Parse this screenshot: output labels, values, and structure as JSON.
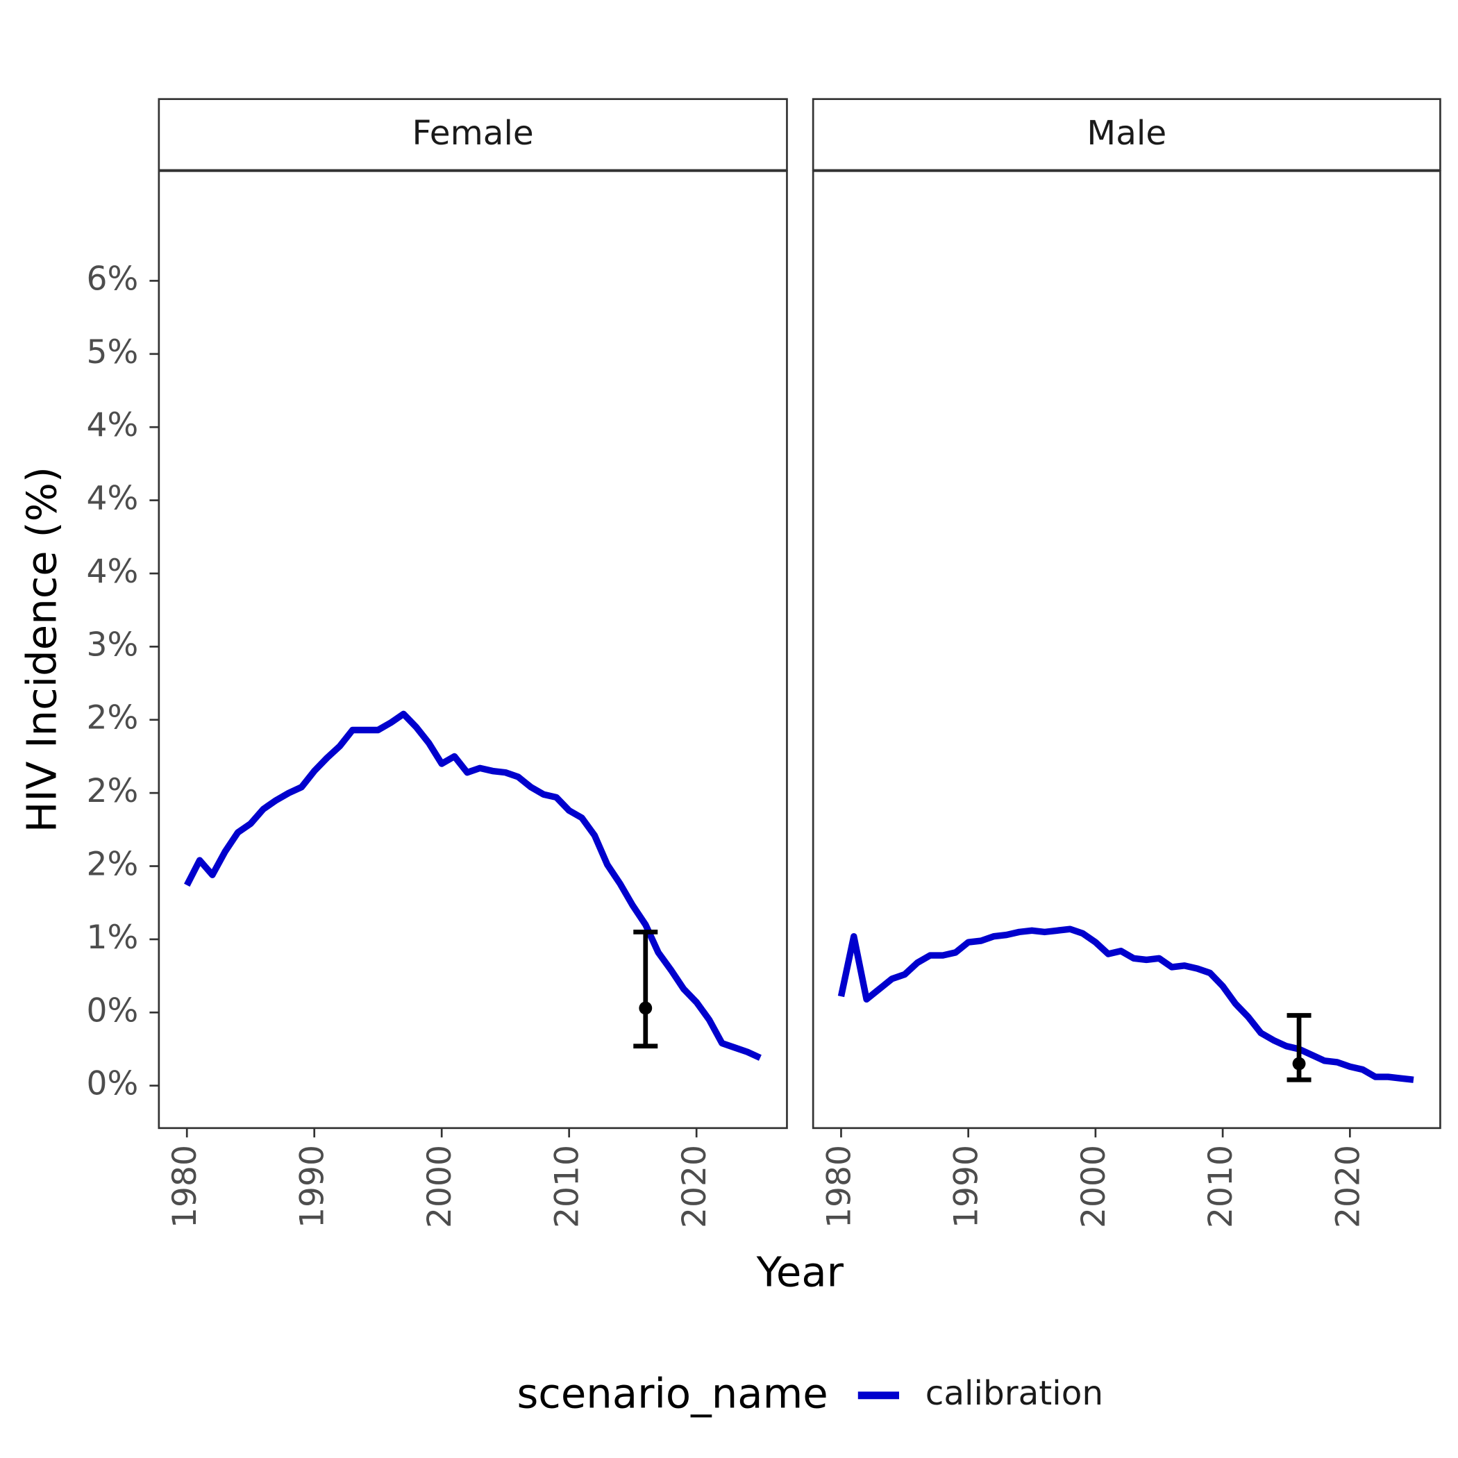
{
  "axes": {
    "ylabel": "HIV Incidence (%)",
    "xlabel": "Year"
  },
  "legend": {
    "title": "scenario_name"
  },
  "chart_data": [
    {
      "type": "line",
      "title": "Female",
      "x": [
        1980,
        1981,
        1982,
        1983,
        1984,
        1985,
        1986,
        1987,
        1988,
        1989,
        1990,
        1991,
        1992,
        1993,
        1994,
        1995,
        1996,
        1997,
        1998,
        1999,
        2000,
        2001,
        2002,
        2003,
        2004,
        2005,
        2006,
        2007,
        2008,
        2009,
        2010,
        2011,
        2012,
        2013,
        2014,
        2015,
        2016,
        2017,
        2018,
        2019,
        2020,
        2021,
        2022,
        2023,
        2024,
        2025
      ],
      "series": [
        {
          "name": "calibration",
          "color": "#0000CD",
          "values": [
            1.37,
            1.54,
            1.44,
            1.6,
            1.73,
            1.79,
            1.89,
            1.95,
            2.0,
            2.04,
            2.15,
            2.24,
            2.32,
            2.43,
            2.43,
            2.43,
            2.48,
            2.54,
            2.45,
            2.34,
            2.2,
            2.25,
            2.14,
            2.17,
            2.15,
            2.14,
            2.11,
            2.04,
            1.99,
            1.97,
            1.88,
            1.83,
            1.71,
            1.51,
            1.38,
            1.23,
            1.1,
            0.91,
            0.79,
            0.66,
            0.57,
            0.45,
            0.29,
            0.26,
            0.23,
            0.19
          ]
        }
      ],
      "target": {
        "x": 2016,
        "value": 0.53,
        "low": 0.27,
        "high": 1.05
      },
      "xlim": [
        1977.8,
        2027.1
      ],
      "xticks": [
        1980,
        1990,
        2000,
        2010,
        2020
      ],
      "ylim": [
        -0.29,
        6.25
      ],
      "yticks": [
        {
          "value": 0,
          "label": "0%"
        },
        {
          "value": 0.5,
          "label": "0%"
        },
        {
          "value": 1,
          "label": "1%"
        },
        {
          "value": 1.5,
          "label": "2%"
        },
        {
          "value": 2,
          "label": "2%"
        },
        {
          "value": 2.5,
          "label": "2%"
        },
        {
          "value": 3,
          "label": "3%"
        },
        {
          "value": 3.5,
          "label": "4%"
        },
        {
          "value": 4,
          "label": "4%"
        },
        {
          "value": 4.5,
          "label": "4%"
        },
        {
          "value": 5,
          "label": "5%"
        },
        {
          "value": 5.5,
          "label": "6%"
        }
      ]
    },
    {
      "type": "line",
      "title": "Male",
      "x": [
        1980,
        1981,
        1982,
        1983,
        1984,
        1985,
        1986,
        1987,
        1988,
        1989,
        1990,
        1991,
        1992,
        1993,
        1994,
        1995,
        1996,
        1997,
        1998,
        1999,
        2000,
        2001,
        2002,
        2003,
        2004,
        2005,
        2006,
        2007,
        2008,
        2009,
        2010,
        2011,
        2012,
        2013,
        2014,
        2015,
        2016,
        2017,
        2018,
        2019,
        2020,
        2021,
        2022,
        2023,
        2024,
        2025
      ],
      "series": [
        {
          "name": "calibration",
          "color": "#0000CD",
          "values": [
            0.61,
            1.02,
            0.59,
            0.66,
            0.73,
            0.76,
            0.84,
            0.89,
            0.89,
            0.91,
            0.98,
            0.99,
            1.02,
            1.03,
            1.05,
            1.06,
            1.05,
            1.06,
            1.07,
            1.04,
            0.98,
            0.9,
            0.92,
            0.87,
            0.86,
            0.87,
            0.81,
            0.82,
            0.8,
            0.77,
            0.68,
            0.56,
            0.47,
            0.36,
            0.31,
            0.27,
            0.25,
            0.21,
            0.17,
            0.16,
            0.13,
            0.11,
            0.06,
            0.06,
            0.05,
            0.04
          ]
        }
      ],
      "target": {
        "x": 2016,
        "value": 0.15,
        "low": 0.04,
        "high": 0.48
      },
      "xlim": [
        1977.8,
        2027.1
      ],
      "xticks": [
        1980,
        1990,
        2000,
        2010,
        2020
      ],
      "ylim": [
        -0.29,
        6.25
      ]
    }
  ]
}
